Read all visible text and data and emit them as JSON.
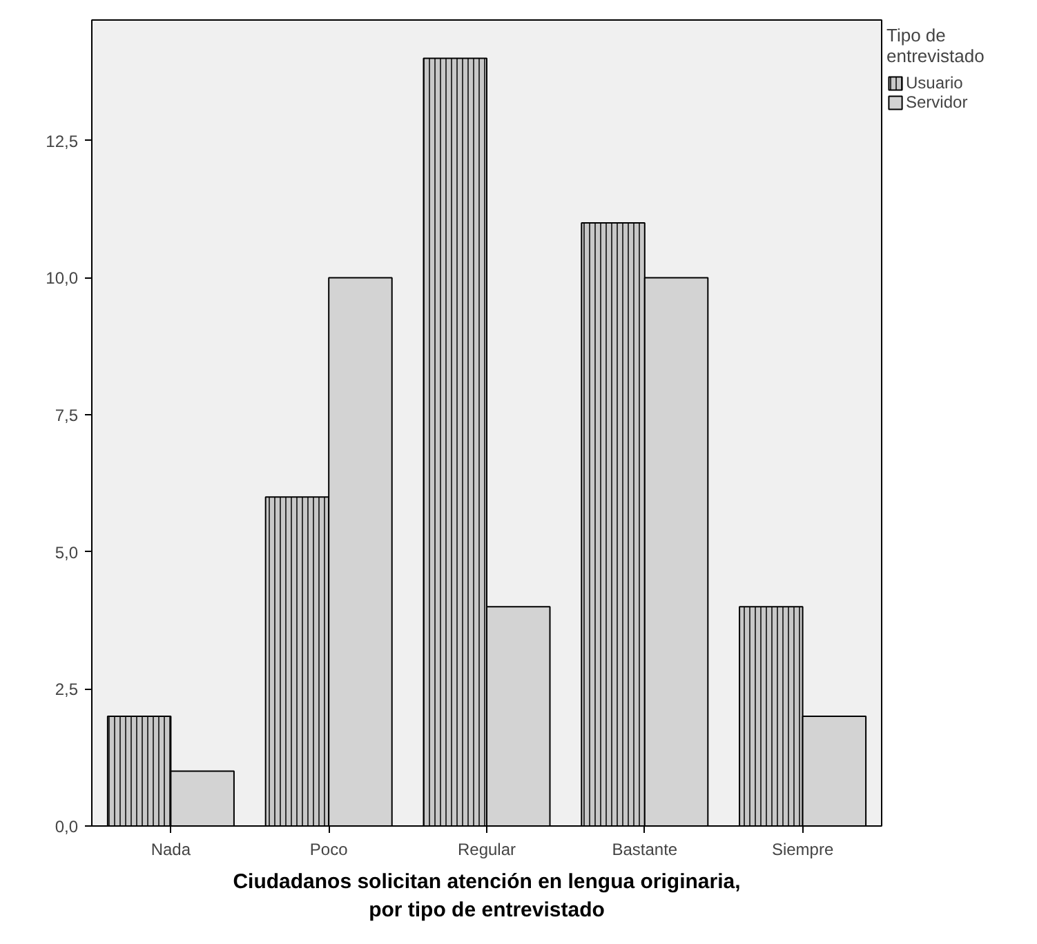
{
  "chart_data": {
    "type": "bar",
    "xlabel": "Ciudadanos solicitan atención en lengua originaria,\npor tipo de entrevistado",
    "legend_title": "Tipo de\nentrevistado",
    "categories": [
      "Nada",
      "Poco",
      "Regular",
      "Bastante",
      "Siempre"
    ],
    "series": [
      {
        "name": "Usuario",
        "color": "#c8c8c8",
        "values": [
          2,
          6,
          14,
          11,
          4
        ]
      },
      {
        "name": "Servidor",
        "color": "#d3d3d3",
        "values": [
          1,
          10,
          4,
          10,
          2
        ]
      }
    ],
    "ylim": [
      0,
      14.7
    ],
    "yticks": [
      {
        "value": 0,
        "label": "0,0"
      },
      {
        "value": 2.5,
        "label": "2,5"
      },
      {
        "value": 5,
        "label": "5,0"
      },
      {
        "value": 7.5,
        "label": "7,5"
      },
      {
        "value": 10,
        "label": "10,0"
      },
      {
        "value": 12.5,
        "label": "12,5"
      }
    ],
    "grid": false,
    "legend": "top right"
  }
}
